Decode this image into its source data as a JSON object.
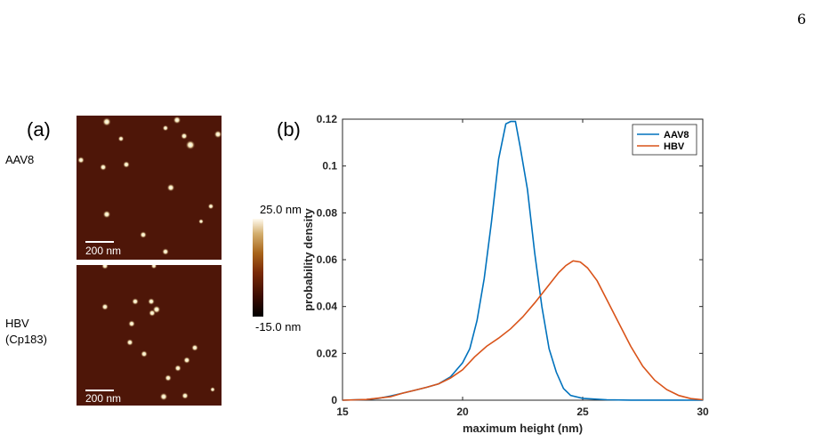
{
  "page_number": "6",
  "panel_a": {
    "label": "(a)",
    "row_labels": {
      "aav8": "AAV8",
      "hbv_line1": "HBV",
      "hbv_line2": "(Cp183)"
    },
    "scale_bar": "200 nm",
    "colorbar": {
      "max": "25.0 nm",
      "min": "-15.0 nm"
    }
  },
  "panel_b": {
    "label": "(b)"
  },
  "chart_data": {
    "type": "line",
    "title": "",
    "xlabel": "maximum height (nm)",
    "ylabel": "probability density",
    "xlim": [
      15,
      30
    ],
    "ylim": [
      0,
      0.12
    ],
    "xticks": [
      15,
      20,
      25,
      30
    ],
    "yticks": [
      0,
      0.02,
      0.04,
      0.06,
      0.08,
      0.1,
      0.12
    ],
    "ytick_labels": [
      "0",
      "0.02",
      "0.04",
      "0.06",
      "0.08",
      "0.1",
      "0.12"
    ],
    "legend_position": "top-right",
    "grid": false,
    "series": [
      {
        "name": "AAV8",
        "color": "#0072bd",
        "x": [
          15,
          16,
          16.5,
          17,
          17.5,
          18,
          18.5,
          19,
          19.5,
          20,
          20.3,
          20.6,
          20.9,
          21.2,
          21.5,
          21.8,
          22.0,
          22.2,
          22.4,
          22.7,
          23.0,
          23.3,
          23.6,
          23.9,
          24.2,
          24.5,
          25,
          26,
          27,
          30
        ],
        "y": [
          0,
          0.0003,
          0.0008,
          0.0018,
          0.003,
          0.0042,
          0.0055,
          0.007,
          0.01,
          0.016,
          0.022,
          0.034,
          0.052,
          0.076,
          0.103,
          0.118,
          0.119,
          0.119,
          0.108,
          0.09,
          0.063,
          0.04,
          0.022,
          0.012,
          0.005,
          0.002,
          0.0008,
          0.0002,
          5e-05,
          0
        ]
      },
      {
        "name": "HBV",
        "color": "#d95319",
        "x": [
          15,
          16,
          17,
          17.5,
          18,
          18.5,
          19,
          19.5,
          20,
          20.5,
          21,
          21.5,
          22,
          22.5,
          23,
          23.5,
          24,
          24.3,
          24.6,
          24.9,
          25.2,
          25.6,
          26,
          26.5,
          27,
          27.5,
          28,
          28.5,
          29,
          29.5,
          30
        ],
        "y": [
          0,
          0.0003,
          0.0015,
          0.003,
          0.0042,
          0.0055,
          0.007,
          0.0095,
          0.013,
          0.0185,
          0.023,
          0.0265,
          0.0305,
          0.0355,
          0.0415,
          0.048,
          0.0545,
          0.0575,
          0.0595,
          0.059,
          0.0565,
          0.051,
          0.043,
          0.033,
          0.023,
          0.0145,
          0.0085,
          0.0045,
          0.002,
          0.0007,
          0.0002
        ]
      }
    ]
  }
}
